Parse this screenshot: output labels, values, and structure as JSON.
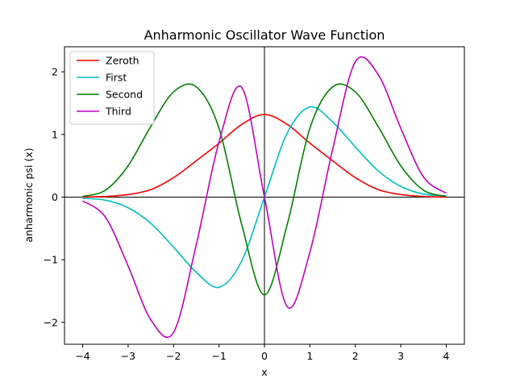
{
  "chart_data": {
    "type": "line",
    "title": "Anharmonic Oscillator Wave Function",
    "xlabel": "x",
    "ylabel": "anharmonic psi (x)",
    "xlim": [
      -4.4,
      4.4
    ],
    "ylim": [
      -2.35,
      2.4
    ],
    "x_ticks": [
      -4,
      -3,
      -2,
      -1,
      0,
      1,
      2,
      3,
      4
    ],
    "y_ticks": [
      -2,
      -1,
      0,
      1,
      2
    ],
    "x_tick_labels": [
      "−4",
      "−3",
      "−2",
      "−1",
      "0",
      "1",
      "2",
      "3",
      "4"
    ],
    "y_tick_labels": [
      "−2",
      "−1",
      "0",
      "1",
      "2"
    ],
    "grid": false,
    "legend_position": "upper-left",
    "reference_lines": {
      "x": 0,
      "y": 0
    },
    "x": [
      -4.0,
      -3.5,
      -3.0,
      -2.5,
      -2.0,
      -1.5,
      -1.0,
      -0.5,
      0.0,
      0.5,
      1.0,
      1.5,
      2.0,
      2.5,
      3.0,
      3.5,
      4.0
    ],
    "series": [
      {
        "name": "Zeroth",
        "color": "#ff0000",
        "values": [
          0.0,
          0.01,
          0.04,
          0.12,
          0.31,
          0.58,
          0.86,
          1.16,
          1.32,
          1.16,
          0.86,
          0.58,
          0.31,
          0.12,
          0.04,
          0.01,
          0.0
        ]
      },
      {
        "name": "First",
        "color": "#00bfbf",
        "values": [
          -0.02,
          -0.05,
          -0.17,
          -0.42,
          -0.8,
          -1.2,
          -1.44,
          -1.02,
          0.0,
          1.02,
          1.44,
          1.2,
          0.8,
          0.42,
          0.17,
          0.05,
          0.02
        ]
      },
      {
        "name": "Second",
        "color": "#008000",
        "values": [
          0.01,
          0.11,
          0.5,
          1.13,
          1.68,
          1.76,
          1.1,
          -0.44,
          -1.56,
          -0.44,
          1.1,
          1.76,
          1.68,
          1.13,
          0.5,
          0.11,
          0.01
        ]
      },
      {
        "name": "Third",
        "color": "#bf00bf",
        "values": [
          -0.06,
          -0.32,
          -1.1,
          -1.96,
          -2.16,
          -0.76,
          0.88,
          1.75,
          0.0,
          -1.75,
          -0.88,
          0.76,
          2.16,
          1.96,
          1.1,
          0.32,
          0.06
        ]
      }
    ]
  }
}
